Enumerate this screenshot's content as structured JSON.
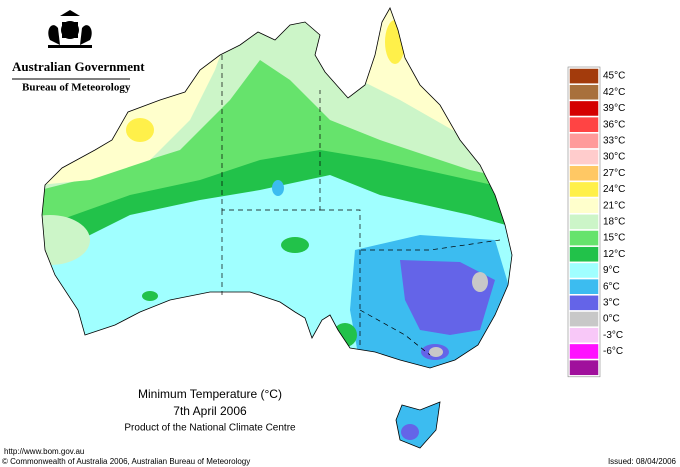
{
  "header": {
    "government": "Australian Government",
    "bureau": "Bureau of Meteorology"
  },
  "legend": {
    "items": [
      {
        "label": "45°C",
        "color": "#a33b0c"
      },
      {
        "label": "42°C",
        "color": "#a8703c"
      },
      {
        "label": "39°C",
        "color": "#d40000"
      },
      {
        "label": "36°C",
        "color": "#ff4444"
      },
      {
        "label": "33°C",
        "color": "#ff9a9a"
      },
      {
        "label": "30°C",
        "color": "#ffcccc"
      },
      {
        "label": "27°C",
        "color": "#ffc864"
      },
      {
        "label": "24°C",
        "color": "#fff04a"
      },
      {
        "label": "21°C",
        "color": "#ffffcc"
      },
      {
        "label": "18°C",
        "color": "#ccf5c8"
      },
      {
        "label": "15°C",
        "color": "#66e36c"
      },
      {
        "label": "12°C",
        "color": "#22c24a"
      },
      {
        "label": "9°C",
        "color": "#a0ffff"
      },
      {
        "label": "6°C",
        "color": "#3cbcf0"
      },
      {
        "label": "3°C",
        "color": "#6464e8"
      },
      {
        "label": "0°C",
        "color": "#c8c8c8"
      },
      {
        "label": "-3°C",
        "color": "#f8c8f8"
      },
      {
        "label": "-6°C",
        "color": "#ff10ff"
      }
    ],
    "bottom_color": "#a0109c"
  },
  "caption": {
    "title": "Minimum Temperature (°C)",
    "date": "7th April 2006",
    "product": "Product of the National Climate Centre"
  },
  "footer": {
    "url": "http://www.bom.gov.au",
    "copyright": "© Commonwealth of Australia 2006, Australian Bureau of Meteorology",
    "issued": "Issued: 08/04/2006"
  }
}
